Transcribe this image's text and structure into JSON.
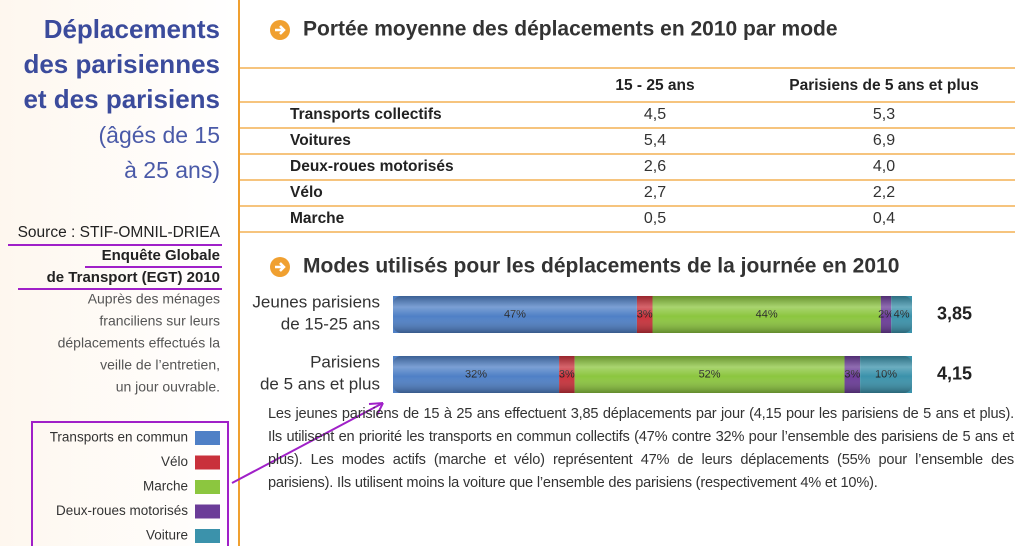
{
  "sidebar": {
    "title_lines": [
      "Déplacements",
      "des parisiennes",
      "et des parisiens"
    ],
    "subtitle_lines": [
      "(âgés de 15",
      "à 25 ans)"
    ],
    "source": "Source : STIF-OMNIL-DRIEA",
    "survey_lines": [
      "Enquête Globale",
      "de Transport (EGT) 2010"
    ],
    "note_lines": [
      "Auprès des ménages",
      "franciliens sur leurs",
      "déplacements effectués la",
      "veille de l’entretien,",
      "un jour ouvrable."
    ]
  },
  "legend": [
    {
      "label": "Transports en commun",
      "color": "#4f80c6"
    },
    {
      "label": "Vélo",
      "color": "#c9313b"
    },
    {
      "label": "Marche",
      "color": "#8cc63f"
    },
    {
      "label": "Deux-roues motorisés",
      "color": "#6b3c98"
    },
    {
      "label": "Voiture",
      "color": "#3b92ab"
    }
  ],
  "table": {
    "title": "Portée moyenne des déplacements en 2010 par mode",
    "columns": [
      "15 - 25 ans",
      "Parisiens de 5 ans et plus"
    ],
    "rows": [
      {
        "label": "Transports collectifs",
        "values": [
          "4,5",
          "5,3"
        ]
      },
      {
        "label": "Voitures",
        "values": [
          "5,4",
          "6,9"
        ]
      },
      {
        "label": "Deux-roues motorisés",
        "values": [
          "2,6",
          "4,0"
        ]
      },
      {
        "label": "Vélo",
        "values": [
          "2,7",
          "2,2"
        ]
      },
      {
        "label": "Marche",
        "values": [
          "0,5",
          "0,4"
        ]
      }
    ]
  },
  "chart": {
    "title": "Modes utilisés pour les déplacements de la journée en 2010",
    "series": [
      {
        "name_lines": [
          "Jeunes parisiens",
          "de 15-25 ans"
        ],
        "values": [
          47,
          3,
          44,
          2,
          4
        ],
        "value_labels": [
          "47%",
          "3%",
          "44%",
          "2%",
          "4%"
        ],
        "total": "3,85"
      },
      {
        "name_lines": [
          "Parisiens",
          "de 5 ans et plus"
        ],
        "values": [
          32,
          3,
          52,
          3,
          10
        ],
        "value_labels": [
          "32%",
          "3%",
          "52%",
          "3%",
          "10%"
        ],
        "total": "4,15"
      }
    ]
  },
  "paragraph": "Les jeunes parisiens de 15 à 25 ans effectuent 3,85 déplacements par jour (4,15 pour les parisiens de 5 ans et plus). Ils utilisent en priorité les transports en commun collectifs (47% contre 32% pour l’ensemble des parisiens de 5 ans et plus). Les modes actifs (marche et vélo) représentent 47% de leurs déplacements (55% pour l’ensemble des parisiens). Ils utilisent moins la voiture que l’ensemble des parisiens (respectivement 4% et 10%)."
}
